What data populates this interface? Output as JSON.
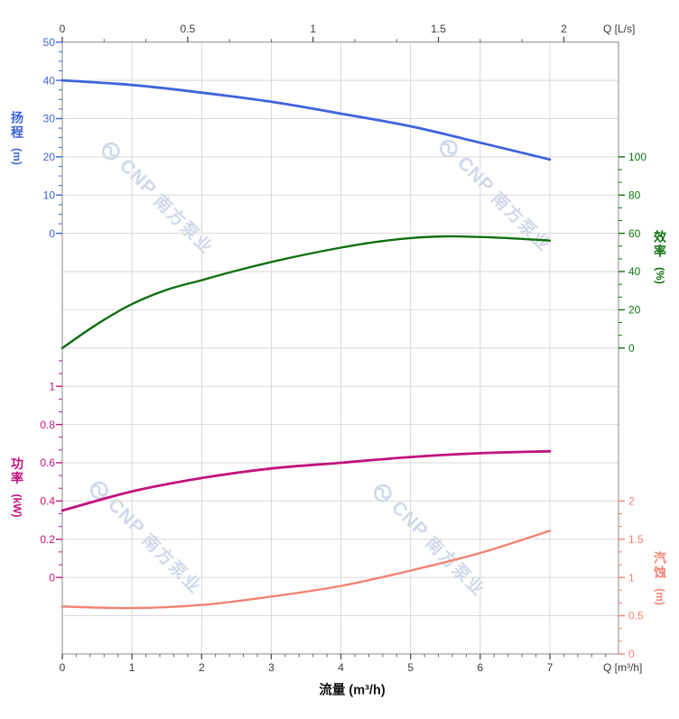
{
  "chart_data": {
    "type": "line",
    "x_bottom": {
      "title": "流量 (m³/h)",
      "unit_label": "Q [m³/h]",
      "tick_labels": [
        "0",
        "1",
        "2",
        "3",
        "4",
        "5",
        "6",
        "7"
      ],
      "tick_values": [
        0,
        1,
        2,
        3,
        4,
        5,
        6,
        7
      ],
      "minor_step": 0.2,
      "range": [
        0,
        7.99
      ]
    },
    "x_top": {
      "unit_label": "Q [L/s]",
      "tick_labels": [
        "0",
        "0.5",
        "1",
        "1.5",
        "2"
      ],
      "tick_values_lps": [
        0,
        0.5,
        1,
        1.5,
        2
      ],
      "lps_to_m3h": 3.6,
      "minor_divisions": 3
    },
    "axes": {
      "head": {
        "title": "扬程",
        "unit": "(m)",
        "color": "#3E63D8",
        "side": "left",
        "tick_labels": [
          "50",
          "40",
          "30",
          "20",
          "10",
          "0"
        ],
        "tick_values": [
          50,
          40,
          30,
          20,
          10,
          0
        ],
        "row_start": 0,
        "minor_div": 4
      },
      "eff": {
        "title": "效率",
        "unit": "(%)",
        "color": "#117211",
        "side": "right",
        "tick_labels": [
          "100",
          "80",
          "60",
          "40",
          "20",
          "0"
        ],
        "tick_values": [
          100,
          80,
          60,
          40,
          20,
          0
        ],
        "row_start": 3,
        "minor_div": 3
      },
      "power": {
        "title": "功率",
        "unit": "(kW)",
        "color": "#C2137E",
        "side": "left",
        "tick_labels": [
          "1",
          "0.8",
          "0.6",
          "0.4",
          "0.2",
          "0"
        ],
        "tick_values": [
          1,
          0.8,
          0.6,
          0.4,
          0.2,
          0
        ],
        "row_start": 9,
        "minor_div": 3
      },
      "npsh": {
        "title": "汽蚀",
        "unit": "(m)",
        "color": "#F28474",
        "side": "right",
        "tick_labels": [
          "2",
          "1.5",
          "1",
          "0.5",
          "0"
        ],
        "tick_values": [
          2,
          1.5,
          1,
          0.5,
          0
        ],
        "row_start": 12,
        "minor_div": 3
      }
    },
    "series": [
      {
        "name": "head_curve",
        "axis": "head",
        "color": "#3F63DC",
        "width": 2.8,
        "x": [
          0,
          1,
          2,
          3,
          4,
          5,
          6,
          7
        ],
        "y": [
          40,
          38.8,
          36.8,
          34.4,
          31.3,
          28,
          23.7,
          19.3
        ]
      },
      {
        "name": "efficiency_curve",
        "axis": "eff",
        "color": "#106F10",
        "width": 2.4,
        "x": [
          0,
          0.5,
          1,
          1.5,
          2,
          2.5,
          3,
          3.5,
          4,
          4.5,
          5,
          5.5,
          6,
          6.5,
          7
        ],
        "y": [
          0,
          12.5,
          23,
          30.5,
          35.5,
          40.5,
          45,
          49,
          52.5,
          55.5,
          57.5,
          58.4,
          58.1,
          57.3,
          56.2
        ]
      },
      {
        "name": "power_curve",
        "axis": "power",
        "color": "#C2137E",
        "width": 2.8,
        "x": [
          0,
          1,
          2,
          3,
          4,
          5,
          6,
          7
        ],
        "y": [
          0.35,
          0.45,
          0.52,
          0.57,
          0.6,
          0.63,
          0.65,
          0.66
        ]
      },
      {
        "name": "npsh_curve",
        "axis": "npsh",
        "color": "#F18372",
        "width": 2.4,
        "x": [
          0,
          1,
          2,
          3,
          4,
          5,
          6,
          7
        ],
        "y": [
          0.62,
          0.6,
          0.64,
          0.75,
          0.89,
          1.09,
          1.32,
          1.61
        ]
      }
    ],
    "grid": {
      "on": true,
      "color": "#D8D8D8",
      "border_color": "#9C9C9C"
    },
    "watermark": {
      "brand": "CNP",
      "cn": "南方泵业",
      "color": "#D2D8EA"
    }
  }
}
